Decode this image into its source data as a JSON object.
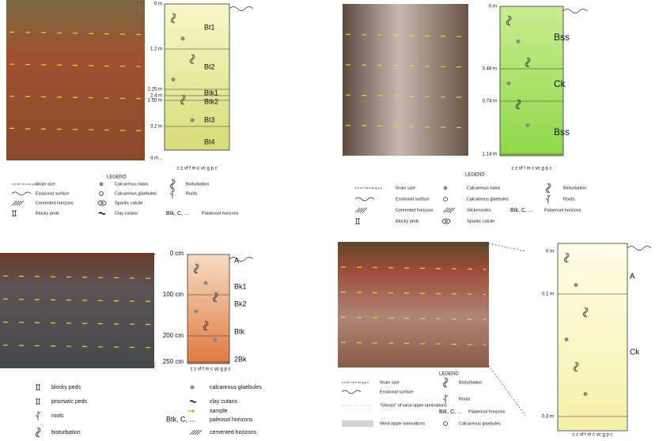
{
  "panels": [
    {
      "depths": [
        "0 m",
        "1.2 m",
        "2.25 m",
        "2.4 m",
        "2.55 m",
        "3.2 m",
        "4 m..."
      ],
      "horizons": [
        "Bt1",
        "Bt2",
        "Btk1",
        "Btk2",
        "Bt3",
        "Bt4"
      ],
      "grain_size": "c z vf f m c vc g p c",
      "legend": {
        "title": "LEGEND",
        "items": [
          {
            "label": "Grain size"
          },
          {
            "label": "Erosional surface"
          },
          {
            "label": "Cemented horizons"
          },
          {
            "label": "Blocky peds"
          },
          {
            "label": "Calcareous halos"
          },
          {
            "label": "Calcareous glaebules"
          },
          {
            "label": "Sparitic calcite"
          },
          {
            "label": "Clay cutans"
          },
          {
            "label": "Bioturbation"
          },
          {
            "label": "Roots"
          },
          {
            "label": "Palaeosol horizons",
            "symbol": "Btk, C, ..."
          }
        ]
      }
    },
    {
      "depths": [
        "0 m",
        "0.48 m",
        "0.74 m",
        "1.14 m"
      ],
      "horizons": [
        "Bss",
        "Ck",
        "Bss"
      ],
      "grain_size": "c z vf f m c vc g p c",
      "legend": {
        "title": "LEGEND",
        "items": [
          {
            "label": "Grain size"
          },
          {
            "label": "Erosional surface"
          },
          {
            "label": "Cemented horizons"
          },
          {
            "label": "Blocky peds"
          },
          {
            "label": "Calcareous halos"
          },
          {
            "label": "Calcareous glaebules"
          },
          {
            "label": "Slickensides"
          },
          {
            "label": "Sparitic calcite"
          },
          {
            "label": "Bioturbation"
          },
          {
            "label": "Roots"
          },
          {
            "label": "Palaeosol horizons",
            "symbol": "Btk, C, ..."
          }
        ]
      }
    },
    {
      "depths": [
        "0 cm",
        "100 cm",
        "200 cm",
        "250 cm"
      ],
      "horizons": [
        "A",
        "Bk1",
        "Bk2",
        "Btk",
        "2Bk"
      ],
      "grain_size": "c z vf f m c vc g p c",
      "legend": {
        "items": [
          {
            "label": "blocky peds"
          },
          {
            "label": "prismatic peds"
          },
          {
            "label": "roots"
          },
          {
            "label": "bioturbation"
          },
          {
            "label": "calcareous glaebules"
          },
          {
            "label": "clay cutans"
          },
          {
            "label": "sample"
          },
          {
            "label": "paleosol horizons",
            "symbol": "Btk, C, ..."
          },
          {
            "label": "cemented horizons"
          }
        ]
      }
    },
    {
      "depths": [
        "0 m",
        "0.1 m",
        "0.3 m"
      ],
      "horizons": [
        "A",
        "Ck"
      ],
      "grain_size": "c z vf f m c vc g p c",
      "legend": {
        "title": "LEGEND",
        "items": [
          {
            "label": "Grain size"
          },
          {
            "label": "Erosional surface"
          },
          {
            "label": "\"Ghosts\" of wind-ripple laminations"
          },
          {
            "label": "Wind-ripple laminations"
          },
          {
            "label": "Bioturbation"
          },
          {
            "label": "Roots"
          },
          {
            "label": "Palaeosol horizons",
            "symbol": "Btk, C, ..."
          },
          {
            "label": "Calcareous glaebules"
          }
        ]
      }
    }
  ]
}
